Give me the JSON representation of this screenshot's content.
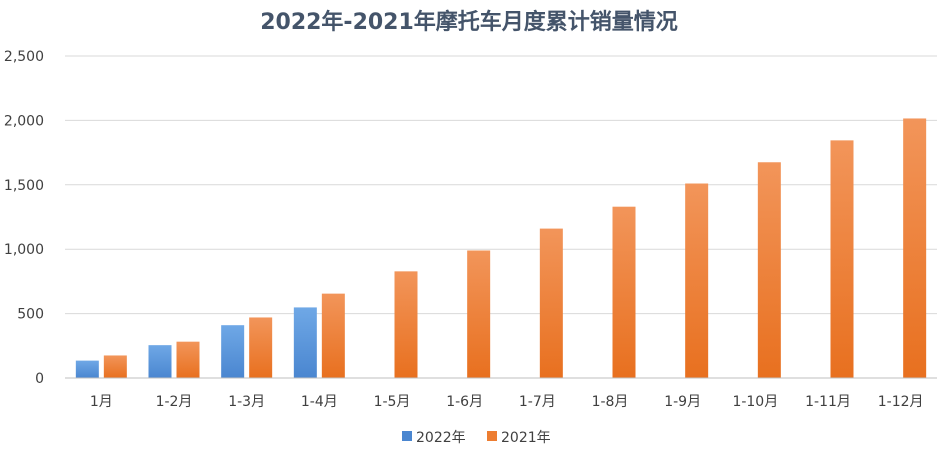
{
  "chart_data": {
    "type": "bar",
    "title": "2022年-2021年摩托车月度累计销量情况",
    "categories": [
      "1月",
      "1-2月",
      "1-3月",
      "1-4月",
      "1-5月",
      "1-6月",
      "1-7月",
      "1-8月",
      "1-9月",
      "1-10月",
      "1-11月",
      "1-12月"
    ],
    "series": [
      {
        "name": "2022年",
        "color": "#4a90d9",
        "values": [
          135,
          255,
          410,
          548,
          null,
          null,
          null,
          null,
          null,
          null,
          null,
          null
        ]
      },
      {
        "name": "2021年",
        "color": "#ed7d31",
        "values": [
          175,
          282,
          470,
          655,
          828,
          990,
          1160,
          1330,
          1510,
          1675,
          1845,
          2015
        ]
      }
    ],
    "ylim": [
      0,
      2500
    ],
    "yticks": [
      0,
      500,
      1000,
      1500,
      2000,
      2500
    ],
    "ytick_labels": [
      "0",
      "500",
      "1,000",
      "1,500",
      "2,000",
      "2,500"
    ],
    "grid": true,
    "legend_position": "bottom"
  }
}
